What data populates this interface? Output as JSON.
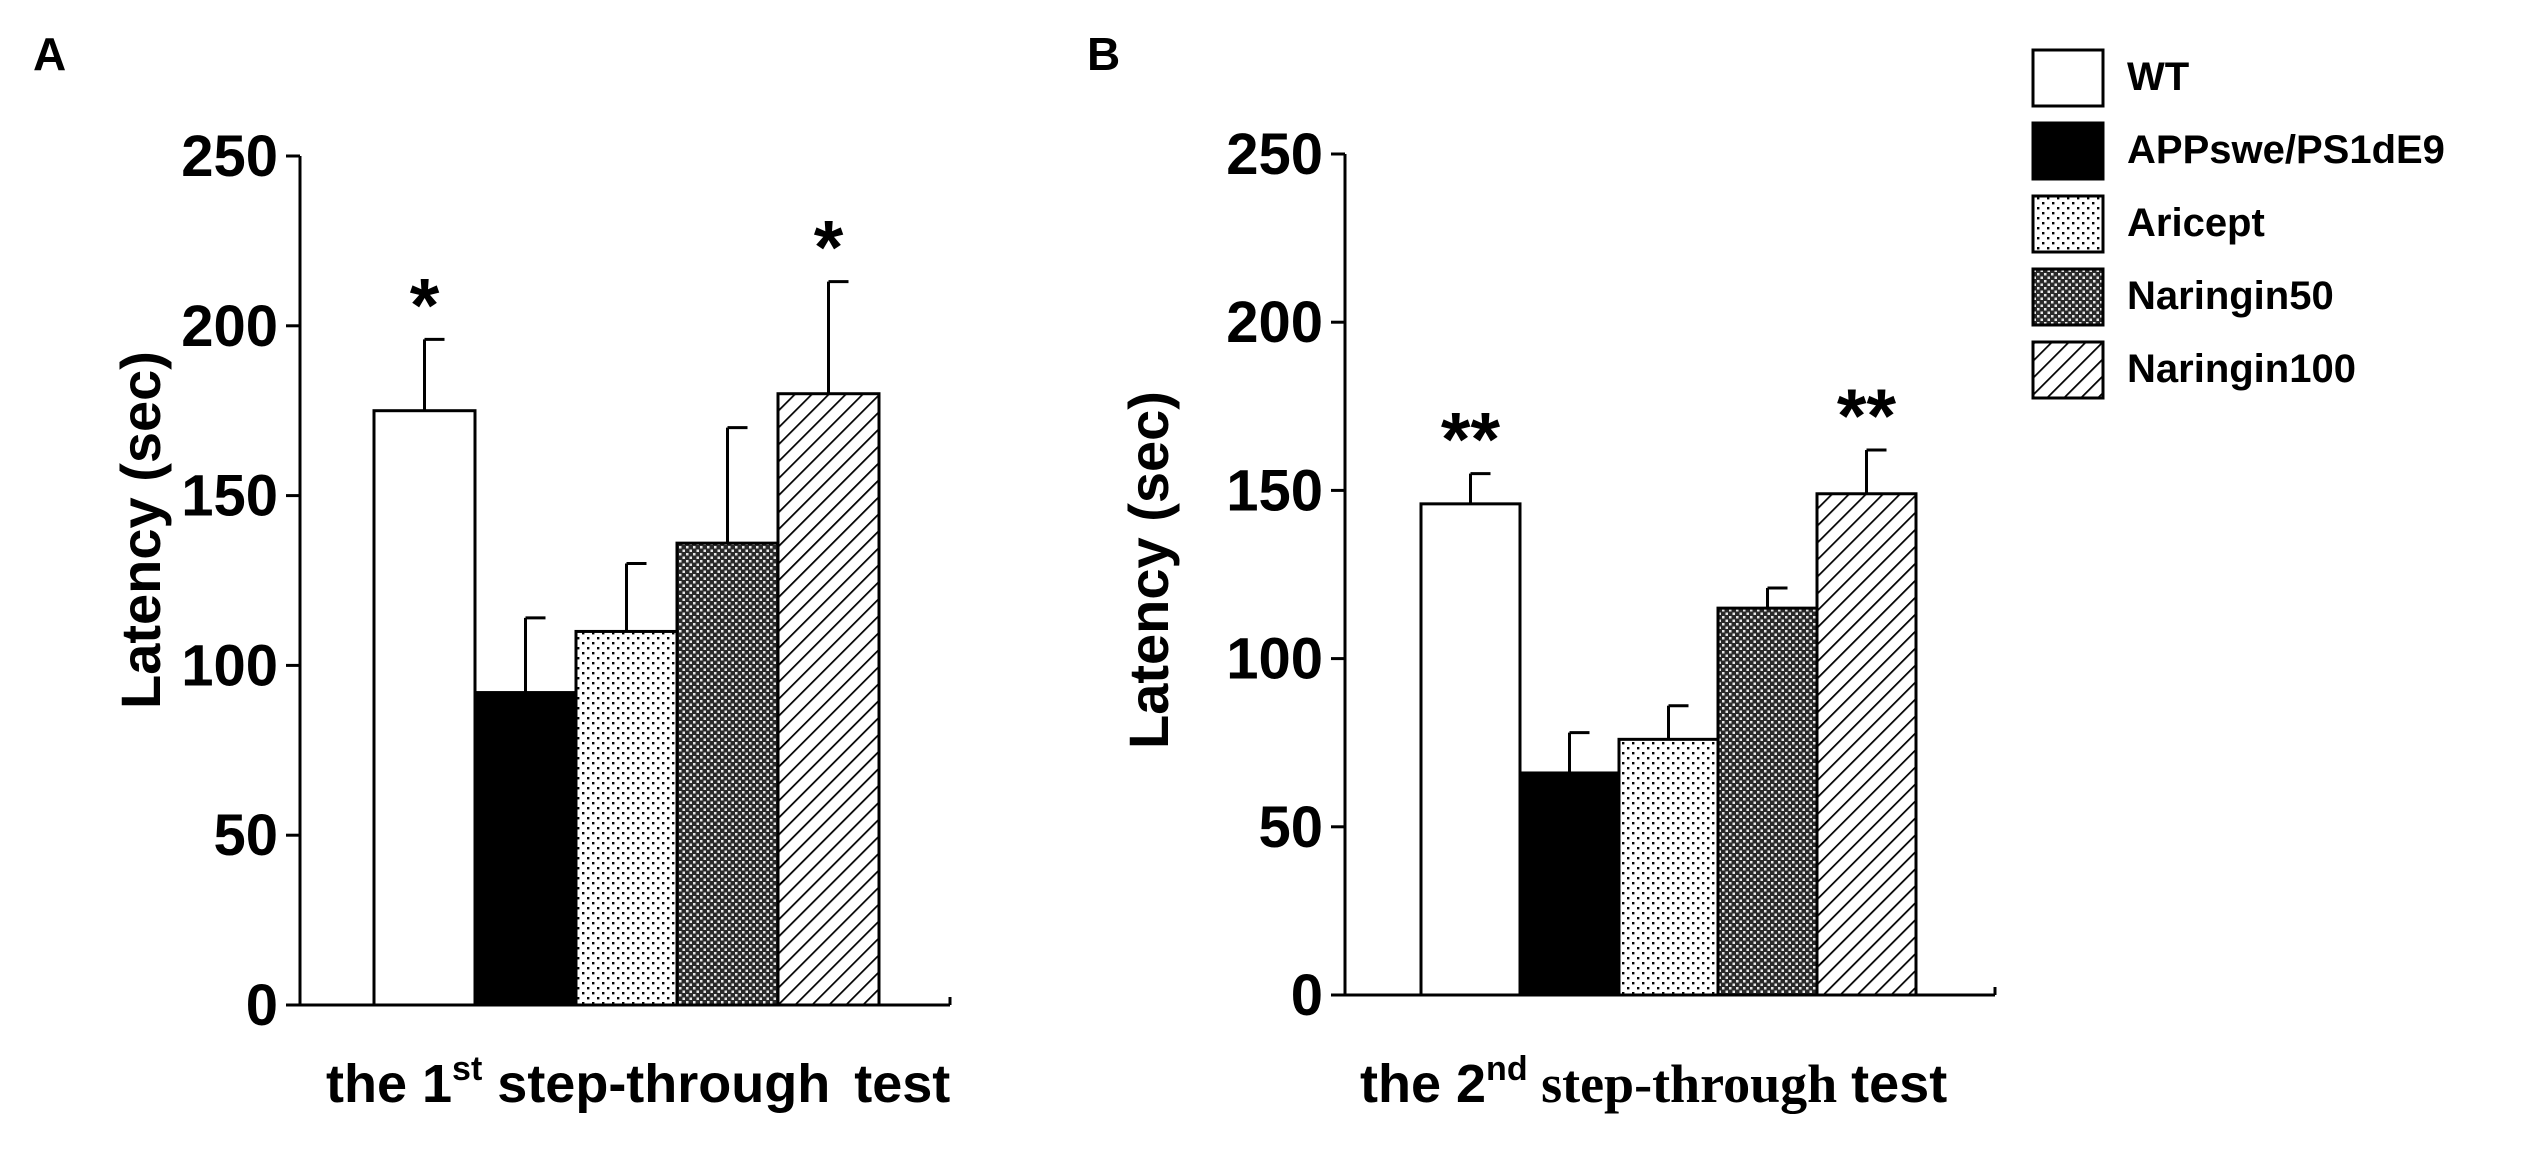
{
  "legend": {
    "entries": [
      {
        "label": "WT",
        "pattern": "white"
      },
      {
        "label": "APPswe/PS1dE9",
        "pattern": "black"
      },
      {
        "label": "Aricept",
        "pattern": "dots"
      },
      {
        "label": "Naringin50",
        "pattern": "crosshatch"
      },
      {
        "label": "Naringin100",
        "pattern": "diagonal"
      }
    ]
  },
  "colors": {
    "axis": "#000000",
    "background": "#ffffff"
  },
  "chart_data": [
    {
      "type": "bar",
      "panel": "A",
      "title": "",
      "xlabel": {
        "prefix": "the 1",
        "sup": "st",
        "middle": " step-through",
        "suffix": "test"
      },
      "ylabel": "Latency (sec)",
      "ylim": [
        0,
        250
      ],
      "yticks": [
        0,
        50,
        100,
        150,
        200,
        250
      ],
      "grid": false,
      "categories": [
        "WT",
        "APPswe/PS1dE9",
        "Aricept",
        "Naringin50",
        "Naringin100"
      ],
      "values": [
        175,
        92,
        110,
        136,
        180
      ],
      "errors": [
        21,
        22,
        20,
        34,
        33
      ],
      "significance": [
        "*",
        "",
        "",
        "",
        "*"
      ]
    },
    {
      "type": "bar",
      "panel": "B",
      "title": "",
      "xlabel": {
        "prefix": "the 2",
        "sup": "nd",
        "middle": " step-through",
        "suffix": "test"
      },
      "ylabel": "Latency (sec)",
      "ylim": [
        0,
        250
      ],
      "yticks": [
        0,
        50,
        100,
        150,
        200,
        250
      ],
      "grid": false,
      "categories": [
        "WT",
        "APPswe/PS1dE9",
        "Aricept",
        "Naringin50",
        "Naringin100"
      ],
      "values": [
        146,
        66,
        76,
        115,
        149
      ],
      "errors": [
        9,
        12,
        10,
        6,
        13
      ],
      "significance": [
        "**",
        "",
        "",
        "",
        "**"
      ]
    }
  ]
}
